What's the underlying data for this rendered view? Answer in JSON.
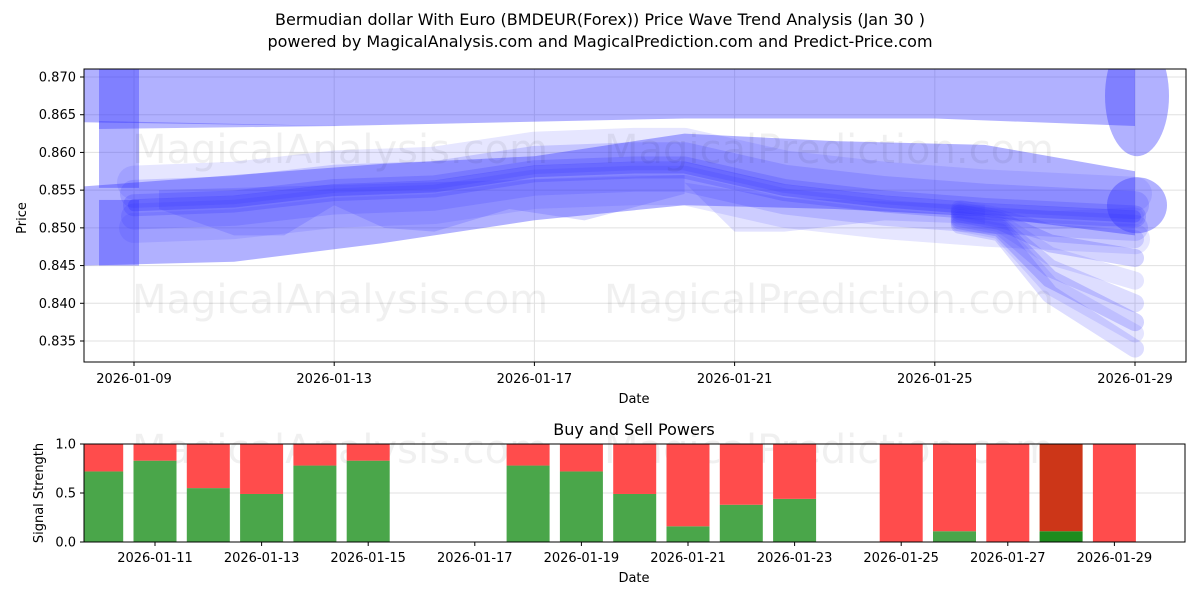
{
  "header": {
    "title": "Bermudian dollar With Euro (BMDEUR(Forex)) Price Wave Trend Analysis (Jan 30 )",
    "subtitle": "powered by MagicalAnalysis.com and MagicalPrediction.com and Predict-Price.com"
  },
  "watermarks": [
    "MagicalAnalysis.com",
    "MagicalPrediction.com"
  ],
  "colors": {
    "band": "#3333ff",
    "buy": "#4aa64a",
    "sell": "#ff4c4c",
    "buy_dark": "#1e8c1e",
    "sell_dark": "#cc3618",
    "grid": "#e0e0e0"
  },
  "chart_data": [
    {
      "type": "area",
      "title": "Price Wave Trend Analysis",
      "xlabel": "Date",
      "ylabel": "Price",
      "ylim": [
        0.832,
        0.871
      ],
      "yticks": [
        "0.835",
        "0.840",
        "0.845",
        "0.850",
        "0.855",
        "0.860",
        "0.865",
        "0.870"
      ],
      "xticks": [
        "2026-01-09",
        "2026-01-13",
        "2026-01-17",
        "2026-01-21",
        "2026-01-25",
        "2026-01-29"
      ],
      "grid": true,
      "description": "Overlapping semi-transparent blue wave bands; central trend rises from ~0.853 (Jan 9) to ~0.858 (Jan 20), then declines to ~0.852 (Jan 26) with forecast fan down to ~0.834-0.853 at Jan 29. Upper envelope ~0.863-0.870.",
      "series": [
        {
          "name": "upper envelope",
          "x": [
            "2026-01-08",
            "2026-01-13",
            "2026-01-20",
            "2026-01-25",
            "2026-01-29"
          ],
          "top": [
            0.871,
            0.871,
            0.871,
            0.871,
            0.871
          ],
          "bottom": [
            0.864,
            0.8635,
            0.8645,
            0.8645,
            0.8635
          ]
        },
        {
          "name": "outer band",
          "x": [
            "2026-01-08",
            "2026-01-11",
            "2026-01-14",
            "2026-01-17",
            "2026-01-20",
            "2026-01-23",
            "2026-01-26",
            "2026-01-29"
          ],
          "top": [
            0.8555,
            0.857,
            0.8585,
            0.8595,
            0.8625,
            0.8615,
            0.861,
            0.8575
          ],
          "bottom": [
            0.845,
            0.8455,
            0.848,
            0.851,
            0.853,
            0.8525,
            0.8515,
            0.849
          ]
        },
        {
          "name": "core trend",
          "x": [
            "2026-01-09",
            "2026-01-11",
            "2026-01-13",
            "2026-01-15",
            "2026-01-17",
            "2026-01-19",
            "2026-01-20",
            "2026-01-22",
            "2026-01-24",
            "2026-01-26",
            "2026-01-29"
          ],
          "values": [
            0.853,
            0.8535,
            0.855,
            0.8555,
            0.8575,
            0.858,
            0.858,
            0.855,
            0.8535,
            0.8525,
            0.8515
          ]
        },
        {
          "name": "forecast fan low",
          "x": [
            "2026-01-26",
            "2026-01-27",
            "2026-01-28",
            "2026-01-29"
          ],
          "values": [
            0.851,
            0.846,
            0.84,
            0.834
          ]
        }
      ]
    },
    {
      "type": "bar",
      "title": "Buy and Sell Powers",
      "xlabel": "Date",
      "ylabel": "Signal Strength",
      "ylim": [
        0,
        1
      ],
      "yticks": [
        "0.0",
        "0.5",
        "1.0"
      ],
      "xticks": [
        "2026-01-11",
        "2026-01-13",
        "2026-01-15",
        "2026-01-17",
        "2026-01-19",
        "2026-01-21",
        "2026-01-23",
        "2026-01-25",
        "2026-01-27",
        "2026-01-29"
      ],
      "categories": [
        "2026-01-10",
        "2026-01-11",
        "2026-01-12",
        "2026-01-13",
        "2026-01-14",
        "2026-01-15",
        "2026-01-18",
        "2026-01-19",
        "2026-01-20",
        "2026-01-21",
        "2026-01-22",
        "2026-01-23",
        "2026-01-25",
        "2026-01-26",
        "2026-01-27",
        "2026-01-28",
        "2026-01-29"
      ],
      "series": [
        {
          "name": "Buy",
          "values": [
            0.72,
            0.83,
            0.55,
            0.49,
            0.78,
            0.83,
            0.78,
            0.72,
            0.49,
            0.16,
            0.38,
            0.44,
            0.0,
            0.11,
            0.0,
            0.11,
            0.0
          ]
        },
        {
          "name": "Sell",
          "values": [
            0.28,
            0.17,
            0.45,
            0.51,
            0.22,
            0.17,
            0.22,
            0.28,
            0.51,
            0.84,
            0.62,
            0.56,
            1.0,
            0.89,
            1.0,
            0.89,
            1.0
          ]
        }
      ],
      "highlight_index": 15
    }
  ]
}
